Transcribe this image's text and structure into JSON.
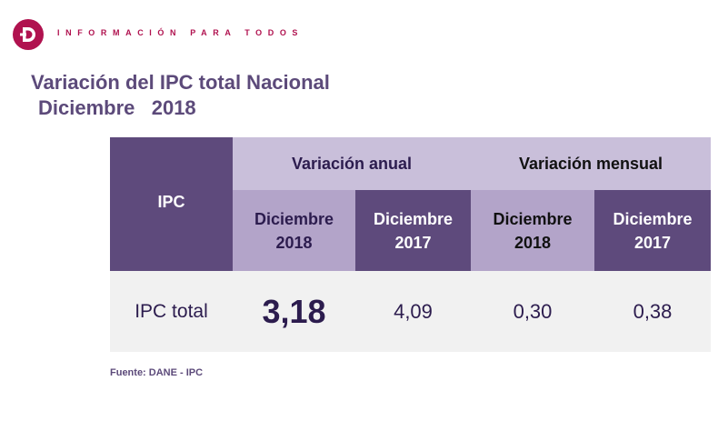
{
  "header": {
    "logo_letter": "D",
    "tagline": "INFORMACIÓN PARA TODOS"
  },
  "title": "Variación del IPC total Nacional",
  "subtitle": "Diciembre   2018",
  "table": {
    "row_header": "IPC",
    "groups": [
      {
        "label": "Variación anual"
      },
      {
        "label": "Variación mensual"
      }
    ],
    "columns": [
      {
        "line1": "Diciembre",
        "line2": "2018"
      },
      {
        "line1": "Diciembre",
        "line2": "2017"
      },
      {
        "line1": "Diciembre",
        "line2": "2018"
      },
      {
        "line1": "Diciembre",
        "line2": "2017"
      }
    ],
    "rows": [
      {
        "label": "IPC total",
        "values": [
          "3,18",
          "4,09",
          "0,30",
          "0,38"
        ]
      }
    ]
  },
  "footer": "Fuente: DANE - IPC",
  "colors": {
    "brand": "#b0124f",
    "dark_purple": "#5e4a7c",
    "light_purple": "#c9bfda",
    "mid_purple": "#b3a4c9",
    "title": "#5c4a7a"
  }
}
